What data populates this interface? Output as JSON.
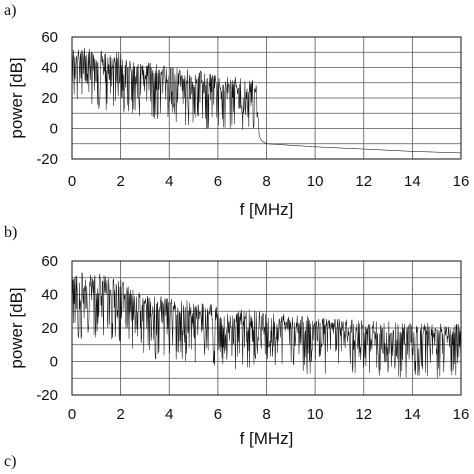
{
  "panel_tags": {
    "a": "a)",
    "b": "b)",
    "c": "c)"
  },
  "chart_data": [
    {
      "type": "line",
      "panel": "a)",
      "xlabel": "f [MHz]",
      "ylabel": "power [dB]",
      "xlim": [
        0,
        16
      ],
      "ylim": [
        -20,
        60
      ],
      "x_ticks": [
        "0",
        "2",
        "4",
        "6",
        "8",
        "10",
        "12",
        "14",
        "16"
      ],
      "y_ticks": [
        "60",
        "40",
        "20",
        "0",
        "-20"
      ],
      "grid": true,
      "series": [
        {
          "envelope": true,
          "x": [
            0,
            0.5,
            1,
            1.5,
            2,
            2.4,
            3,
            4,
            5,
            6,
            7,
            7.5,
            7.6,
            7.7,
            7.8,
            8,
            9,
            10,
            12,
            14,
            16
          ],
          "upper": [
            52,
            53,
            52,
            50,
            50,
            45,
            44,
            41,
            39,
            36,
            33,
            32,
            30,
            -5,
            -8,
            -10,
            -11,
            -12,
            -13.5,
            -15,
            -16
          ],
          "lower": [
            15,
            12,
            13,
            10,
            12,
            8,
            5,
            2,
            0,
            -2,
            -3,
            0,
            2,
            -5,
            -8,
            -10,
            -11,
            -12,
            -13.5,
            -15,
            -16
          ]
        }
      ]
    },
    {
      "type": "line",
      "panel": "b)",
      "xlabel": "f [MHz]",
      "ylabel": "power [dB]",
      "xlim": [
        0,
        16
      ],
      "ylim": [
        -20,
        60
      ],
      "x_ticks": [
        "0",
        "2",
        "4",
        "6",
        "8",
        "10",
        "12",
        "14",
        "16"
      ],
      "y_ticks": [
        "60",
        "40",
        "20",
        "0",
        "-20"
      ],
      "grid": true,
      "series": [
        {
          "envelope": true,
          "x": [
            0,
            0.5,
            1,
            1.5,
            2,
            2.5,
            3,
            4,
            5,
            6,
            7,
            8,
            9,
            10,
            11,
            12,
            13,
            14,
            15,
            16
          ],
          "upper": [
            52,
            54,
            53,
            51,
            49,
            43,
            41,
            38,
            36,
            34,
            32,
            30,
            28,
            27,
            26,
            25,
            24,
            23,
            23,
            22
          ],
          "lower": [
            15,
            12,
            14,
            10,
            12,
            5,
            2,
            0,
            -2,
            -4,
            -5,
            -6,
            -7,
            -8,
            -8,
            -9,
            -9,
            -10,
            -10,
            -10
          ]
        }
      ]
    }
  ]
}
